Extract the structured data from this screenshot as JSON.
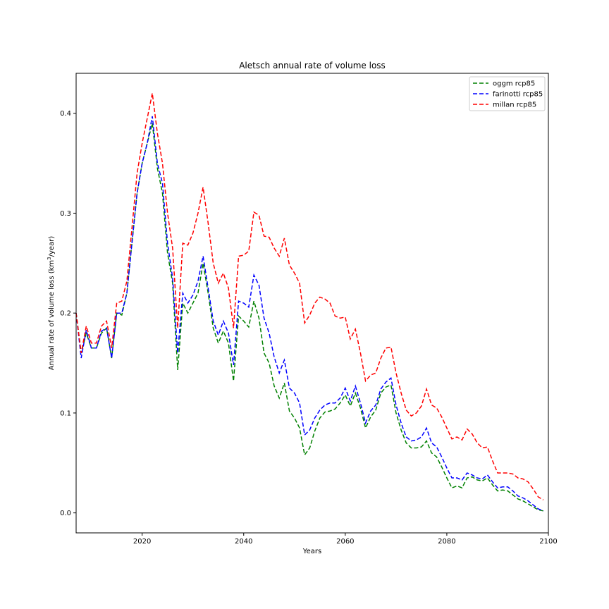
{
  "chart_data": {
    "type": "line",
    "title": "Aletsch annual rate of volume loss",
    "xlabel": "Years",
    "ylabel_prefix": "Annual rate of volume loss (km",
    "ylabel_sup": "3",
    "ylabel_suffix": "/year)",
    "xlim": [
      2007,
      2100
    ],
    "ylim": [
      -0.02,
      0.44
    ],
    "xticks": [
      2020,
      2040,
      2060,
      2080,
      2100
    ],
    "xtick_labels": [
      "2020",
      "2040",
      "2060",
      "2080",
      "2100"
    ],
    "yticks": [
      0.0,
      0.1,
      0.2,
      0.3,
      0.4
    ],
    "ytick_labels": [
      "0.0",
      "0.1",
      "0.2",
      "0.3",
      "0.4"
    ],
    "grid": false,
    "legend_position": "top-right",
    "series": [
      {
        "name": "oggm rcp85",
        "color": "#008000",
        "x": [
          2007,
          2008,
          2009,
          2010,
          2011,
          2012,
          2013,
          2014,
          2015,
          2016,
          2017,
          2018,
          2019,
          2020,
          2021,
          2022,
          2023,
          2024,
          2025,
          2026,
          2027,
          2028,
          2029,
          2030,
          2031,
          2032,
          2033,
          2034,
          2035,
          2036,
          2037,
          2038,
          2039,
          2040,
          2041,
          2042,
          2043,
          2044,
          2045,
          2046,
          2047,
          2048,
          2049,
          2050,
          2051,
          2052,
          2053,
          2054,
          2055,
          2056,
          2057,
          2058,
          2059,
          2060,
          2061,
          2062,
          2063,
          2064,
          2065,
          2066,
          2067,
          2068,
          2069,
          2070,
          2071,
          2072,
          2073,
          2074,
          2075,
          2076,
          2077,
          2078,
          2079,
          2080,
          2081,
          2082,
          2083,
          2084,
          2085,
          2086,
          2087,
          2088,
          2089,
          2090,
          2091,
          2092,
          2093,
          2094,
          2095,
          2096,
          2097,
          2098,
          2099
        ],
        "values": [
          0.2,
          0.16,
          0.18,
          0.165,
          0.165,
          0.18,
          0.185,
          0.155,
          0.2,
          0.198,
          0.22,
          0.27,
          0.32,
          0.35,
          0.37,
          0.39,
          0.345,
          0.32,
          0.26,
          0.23,
          0.143,
          0.21,
          0.2,
          0.21,
          0.22,
          0.25,
          0.22,
          0.185,
          0.17,
          0.182,
          0.17,
          0.132,
          0.197,
          0.192,
          0.186,
          0.212,
          0.195,
          0.16,
          0.15,
          0.127,
          0.115,
          0.13,
          0.102,
          0.095,
          0.085,
          0.058,
          0.065,
          0.082,
          0.095,
          0.101,
          0.102,
          0.104,
          0.11,
          0.118,
          0.107,
          0.12,
          0.105,
          0.085,
          0.096,
          0.103,
          0.12,
          0.126,
          0.128,
          0.1,
          0.083,
          0.07,
          0.065,
          0.065,
          0.066,
          0.072,
          0.06,
          0.056,
          0.046,
          0.035,
          0.025,
          0.027,
          0.025,
          0.035,
          0.036,
          0.033,
          0.032,
          0.035,
          0.028,
          0.022,
          0.023,
          0.022,
          0.018,
          0.014,
          0.012,
          0.009,
          0.006,
          0.003,
          0.002
        ]
      },
      {
        "name": "farinotti rcp85",
        "color": "#0000ff",
        "x": [
          2007,
          2008,
          2009,
          2010,
          2011,
          2012,
          2013,
          2014,
          2015,
          2016,
          2017,
          2018,
          2019,
          2020,
          2021,
          2022,
          2023,
          2024,
          2025,
          2026,
          2027,
          2028,
          2029,
          2030,
          2031,
          2032,
          2033,
          2034,
          2035,
          2036,
          2037,
          2038,
          2039,
          2040,
          2041,
          2042,
          2043,
          2044,
          2045,
          2046,
          2047,
          2048,
          2049,
          2050,
          2051,
          2052,
          2053,
          2054,
          2055,
          2056,
          2057,
          2058,
          2059,
          2060,
          2061,
          2062,
          2063,
          2064,
          2065,
          2066,
          2067,
          2068,
          2069,
          2070,
          2071,
          2072,
          2073,
          2074,
          2075,
          2076,
          2077,
          2078,
          2079,
          2080,
          2081,
          2082,
          2083,
          2084,
          2085,
          2086,
          2087,
          2088,
          2089,
          2090,
          2091,
          2092,
          2093,
          2094,
          2095,
          2096,
          2097,
          2098,
          2099
        ],
        "values": [
          0.2,
          0.155,
          0.183,
          0.165,
          0.165,
          0.182,
          0.185,
          0.155,
          0.2,
          0.2,
          0.22,
          0.27,
          0.32,
          0.35,
          0.37,
          0.397,
          0.35,
          0.33,
          0.27,
          0.235,
          0.16,
          0.22,
          0.21,
          0.218,
          0.232,
          0.257,
          0.225,
          0.192,
          0.178,
          0.192,
          0.18,
          0.148,
          0.212,
          0.21,
          0.206,
          0.238,
          0.228,
          0.195,
          0.18,
          0.156,
          0.14,
          0.153,
          0.125,
          0.12,
          0.11,
          0.078,
          0.083,
          0.095,
          0.103,
          0.108,
          0.11,
          0.11,
          0.115,
          0.125,
          0.112,
          0.127,
          0.11,
          0.09,
          0.102,
          0.108,
          0.124,
          0.131,
          0.135,
          0.108,
          0.09,
          0.076,
          0.072,
          0.073,
          0.076,
          0.085,
          0.07,
          0.066,
          0.056,
          0.045,
          0.035,
          0.035,
          0.033,
          0.04,
          0.038,
          0.035,
          0.034,
          0.038,
          0.031,
          0.025,
          0.026,
          0.026,
          0.022,
          0.017,
          0.015,
          0.012,
          0.008,
          0.004,
          0.002
        ]
      },
      {
        "name": "millan rcp85",
        "color": "#ff0000",
        "x": [
          2007,
          2008,
          2009,
          2010,
          2011,
          2012,
          2013,
          2014,
          2015,
          2016,
          2017,
          2018,
          2019,
          2020,
          2021,
          2022,
          2023,
          2024,
          2025,
          2026,
          2027,
          2028,
          2029,
          2030,
          2031,
          2032,
          2033,
          2034,
          2035,
          2036,
          2037,
          2038,
          2039,
          2040,
          2041,
          2042,
          2043,
          2044,
          2045,
          2046,
          2047,
          2048,
          2049,
          2050,
          2051,
          2052,
          2053,
          2054,
          2055,
          2056,
          2057,
          2058,
          2059,
          2060,
          2061,
          2062,
          2063,
          2064,
          2065,
          2066,
          2067,
          2068,
          2069,
          2070,
          2071,
          2072,
          2073,
          2074,
          2075,
          2076,
          2077,
          2078,
          2079,
          2080,
          2081,
          2082,
          2083,
          2084,
          2085,
          2086,
          2087,
          2088,
          2089,
          2090,
          2091,
          2092,
          2093,
          2094,
          2095,
          2096,
          2097,
          2098,
          2099
        ],
        "values": [
          0.2,
          0.16,
          0.187,
          0.17,
          0.17,
          0.187,
          0.192,
          0.165,
          0.21,
          0.212,
          0.232,
          0.285,
          0.34,
          0.37,
          0.395,
          0.42,
          0.38,
          0.35,
          0.3,
          0.265,
          0.185,
          0.27,
          0.268,
          0.28,
          0.3,
          0.326,
          0.29,
          0.25,
          0.23,
          0.24,
          0.225,
          0.185,
          0.257,
          0.258,
          0.262,
          0.301,
          0.298,
          0.277,
          0.276,
          0.265,
          0.257,
          0.275,
          0.248,
          0.24,
          0.23,
          0.19,
          0.198,
          0.21,
          0.216,
          0.214,
          0.21,
          0.197,
          0.195,
          0.196,
          0.174,
          0.184,
          0.16,
          0.132,
          0.138,
          0.14,
          0.155,
          0.165,
          0.166,
          0.14,
          0.12,
          0.103,
          0.097,
          0.1,
          0.107,
          0.124,
          0.108,
          0.105,
          0.096,
          0.085,
          0.074,
          0.076,
          0.073,
          0.084,
          0.079,
          0.07,
          0.065,
          0.066,
          0.052,
          0.04,
          0.04,
          0.04,
          0.039,
          0.035,
          0.034,
          0.031,
          0.024,
          0.016,
          0.013
        ]
      }
    ]
  }
}
